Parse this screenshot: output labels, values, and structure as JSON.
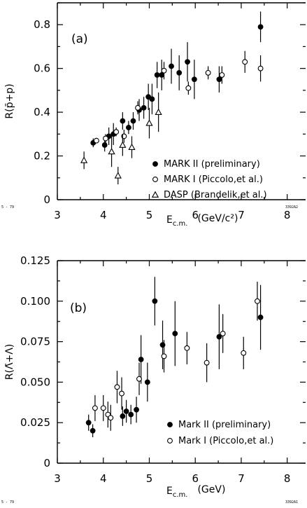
{
  "chart_data": [
    {
      "type": "scatter",
      "panel_label": "(a)",
      "ylabel": "R(p̄+p)",
      "xlabel_main": "E",
      "xlabel_sub": "c.m.",
      "xlabel_unit": "(GeV/c²)",
      "xlim": [
        3,
        8.4
      ],
      "ylim": [
        0,
        0.9
      ],
      "xticks": [
        3,
        4,
        5,
        6,
        7,
        8
      ],
      "yticks": [
        0,
        0.2,
        0.4,
        0.6,
        0.8
      ],
      "ytick_labels": [
        "0",
        "0.2",
        "0.4",
        "0.6",
        "0.8"
      ],
      "corner_left": "5 - 79",
      "corner_right": "3392A2",
      "legend_placement": "lower-right",
      "series": [
        {
          "name": "MARK II (preliminary)",
          "marker": "filled-circle",
          "points": [
            [
              3.78,
              0.26,
              0.02
            ],
            [
              4.03,
              0.25,
              0.03
            ],
            [
              4.12,
              0.29,
              0.04
            ],
            [
              4.22,
              0.3,
              0.05
            ],
            [
              4.42,
              0.36,
              0.04
            ],
            [
              4.55,
              0.33,
              0.03
            ],
            [
              4.65,
              0.36,
              0.04
            ],
            [
              4.78,
              0.41,
              0.05
            ],
            [
              4.88,
              0.42,
              0.05
            ],
            [
              4.98,
              0.47,
              0.06
            ],
            [
              5.06,
              0.46,
              0.07
            ],
            [
              5.17,
              0.57,
              0.06
            ],
            [
              5.27,
              0.57,
              0.07
            ],
            [
              5.48,
              0.61,
              0.08
            ],
            [
              5.65,
              0.58,
              0.08
            ],
            [
              5.83,
              0.63,
              0.09
            ],
            [
              5.98,
              0.55,
              0.09
            ],
            [
              6.52,
              0.55,
              0.06
            ],
            [
              7.42,
              0.79,
              0.07
            ]
          ]
        },
        {
          "name": "MARK I (Piccolo,et al.)",
          "marker": "open-circle",
          "points": [
            [
              3.85,
              0.27,
              0.01
            ],
            [
              4.05,
              0.28,
              0.02
            ],
            [
              4.28,
              0.31,
              0.02
            ],
            [
              4.45,
              0.29,
              0.03
            ],
            [
              4.75,
              0.42,
              0.03
            ],
            [
              5.32,
              0.59,
              0.04
            ],
            [
              5.85,
              0.51,
              0.03
            ],
            [
              6.28,
              0.58,
              0.03
            ],
            [
              6.58,
              0.57,
              0.04
            ],
            [
              7.08,
              0.63,
              0.05
            ],
            [
              7.42,
              0.6,
              0.06
            ]
          ]
        },
        {
          "name": "DASP (Brandelik,et al.)",
          "marker": "open-triangle",
          "points": [
            [
              3.58,
              0.18,
              0.04
            ],
            [
              4.18,
              0.22,
              0.07
            ],
            [
              4.32,
              0.11,
              0.04
            ],
            [
              4.42,
              0.25,
              0.05
            ],
            [
              4.62,
              0.24,
              0.05
            ],
            [
              5.0,
              0.35,
              0.07
            ],
            [
              5.2,
              0.4,
              0.09
            ]
          ]
        }
      ]
    },
    {
      "type": "scatter",
      "panel_label": "(b)",
      "ylabel": "R(Λ̄+Λ)",
      "xlabel_main": "E",
      "xlabel_sub": "c.m.",
      "xlabel_unit": "(GeV)",
      "xlim": [
        3,
        8.4
      ],
      "ylim": [
        0,
        0.125
      ],
      "xticks": [
        3,
        4,
        5,
        6,
        7,
        8
      ],
      "yticks": [
        0,
        0.025,
        0.05,
        0.075,
        0.1,
        0.125
      ],
      "ytick_labels": [
        "0",
        "0.025",
        "0.050",
        "0.075",
        "0.100",
        "0.125"
      ],
      "corner_left": "5 - 79",
      "corner_right": "3392A1",
      "legend_placement": "lower-right",
      "series": [
        {
          "name": "Mark II  (preliminary)",
          "marker": "filled-circle",
          "points": [
            [
              3.68,
              0.025,
              0.005
            ],
            [
              3.77,
              0.02,
              0.004
            ],
            [
              4.42,
              0.029,
              0.006
            ],
            [
              4.5,
              0.032,
              0.007
            ],
            [
              4.6,
              0.03,
              0.006
            ],
            [
              4.72,
              0.033,
              0.008
            ],
            [
              4.82,
              0.064,
              0.015
            ],
            [
              4.96,
              0.05,
              0.012
            ],
            [
              5.12,
              0.1,
              0.015
            ],
            [
              5.29,
              0.073,
              0.015
            ],
            [
              5.56,
              0.08,
              0.02
            ],
            [
              6.52,
              0.078,
              0.02
            ],
            [
              7.42,
              0.09,
              0.02
            ]
          ]
        },
        {
          "name": "Mark I   (Piccolo,et al.)",
          "marker": "open-circle",
          "points": [
            [
              3.82,
              0.034,
              0.008
            ],
            [
              4.0,
              0.034,
              0.008
            ],
            [
              4.1,
              0.03,
              0.008
            ],
            [
              4.16,
              0.028,
              0.008
            ],
            [
              4.3,
              0.047,
              0.01
            ],
            [
              4.4,
              0.043,
              0.01
            ],
            [
              4.78,
              0.052,
              0.01
            ],
            [
              5.32,
              0.066,
              0.01
            ],
            [
              5.82,
              0.071,
              0.01
            ],
            [
              6.25,
              0.062,
              0.012
            ],
            [
              6.6,
              0.08,
              0.012
            ],
            [
              7.05,
              0.068,
              0.01
            ],
            [
              7.35,
              0.1,
              0.012
            ]
          ]
        }
      ]
    }
  ]
}
